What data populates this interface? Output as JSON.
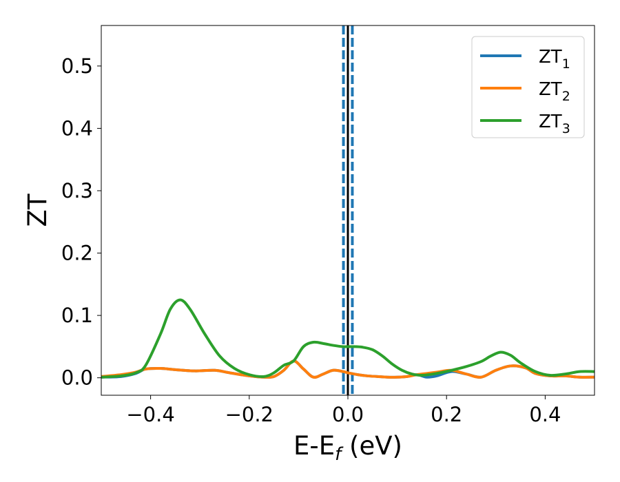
{
  "chart_data": {
    "type": "line",
    "title": "",
    "xlabel": {
      "main": "E-E",
      "sub": "f",
      "suffix": " (eV)"
    },
    "ylabel": "ZT",
    "xlim": [
      -0.5,
      0.5
    ],
    "ylim": [
      -0.028,
      0.565
    ],
    "xticks": [
      -0.4,
      -0.2,
      0.0,
      0.2,
      0.4
    ],
    "xtick_labels": [
      "−0.4",
      "−0.2",
      "0.0",
      "0.2",
      "0.4"
    ],
    "yticks": [
      0.0,
      0.1,
      0.2,
      0.3,
      0.4,
      0.5
    ],
    "ytick_labels": [
      "0.0",
      "0.1",
      "0.2",
      "0.3",
      "0.4",
      "0.5"
    ],
    "grid": false,
    "legend_position": "top-right",
    "vertical_lines": [
      {
        "x": 0.0,
        "style": "solid",
        "color": "#000000"
      },
      {
        "x": -0.009,
        "style": "dashed",
        "color": "#1f77b4"
      },
      {
        "x": 0.009,
        "style": "dashed",
        "color": "#1f77b4"
      }
    ],
    "series": [
      {
        "name": "ZT",
        "sub": "1",
        "color": "#1f77b4",
        "x": [
          -0.5,
          -0.46,
          -0.43,
          -0.41,
          -0.38,
          -0.35,
          -0.31,
          -0.27,
          -0.24,
          -0.2,
          -0.17,
          -0.15,
          -0.13,
          -0.11,
          -0.09,
          -0.07,
          -0.05,
          -0.03,
          -0.01,
          0.0,
          0.02,
          0.04,
          0.06,
          0.08,
          0.1,
          0.12,
          0.14,
          0.16,
          0.18,
          0.21,
          0.24,
          0.27,
          0.3,
          0.33,
          0.36,
          0.38,
          0.41,
          0.44,
          0.47,
          0.5
        ],
        "y": [
          0.001,
          0.002,
          0.007,
          0.014,
          0.015,
          0.013,
          0.011,
          0.012,
          0.008,
          0.003,
          0.001,
          0.002,
          0.012,
          0.027,
          0.014,
          0.001,
          0.006,
          0.012,
          0.01,
          0.008,
          0.005,
          0.003,
          0.002,
          0.001,
          0.001,
          0.002,
          0.005,
          0.001,
          0.003,
          0.01,
          0.006,
          0.001,
          0.012,
          0.019,
          0.016,
          0.007,
          0.003,
          0.003,
          0.001,
          0.001
        ]
      },
      {
        "name": "ZT",
        "sub": "2",
        "color": "#ff7f0e",
        "x": [
          -0.5,
          -0.46,
          -0.43,
          -0.41,
          -0.38,
          -0.35,
          -0.31,
          -0.27,
          -0.24,
          -0.2,
          -0.17,
          -0.15,
          -0.13,
          -0.11,
          -0.09,
          -0.07,
          -0.05,
          -0.03,
          -0.01,
          0.0,
          0.02,
          0.04,
          0.06,
          0.08,
          0.1,
          0.12,
          0.14,
          0.16,
          0.18,
          0.21,
          0.24,
          0.27,
          0.3,
          0.33,
          0.36,
          0.38,
          0.41,
          0.44,
          0.47,
          0.5
        ],
        "y": [
          0.002,
          0.005,
          0.009,
          0.014,
          0.015,
          0.013,
          0.011,
          0.012,
          0.008,
          0.003,
          0.001,
          0.002,
          0.012,
          0.027,
          0.014,
          0.001,
          0.006,
          0.012,
          0.01,
          0.008,
          0.005,
          0.003,
          0.002,
          0.001,
          0.001,
          0.002,
          0.005,
          0.007,
          0.009,
          0.012,
          0.006,
          0.001,
          0.012,
          0.019,
          0.016,
          0.007,
          0.003,
          0.003,
          0.001,
          0.001
        ]
      },
      {
        "name": "ZT",
        "sub": "3",
        "color": "#2ca02c",
        "x": [
          -0.5,
          -0.46,
          -0.43,
          -0.41,
          -0.38,
          -0.36,
          -0.34,
          -0.32,
          -0.29,
          -0.26,
          -0.23,
          -0.2,
          -0.17,
          -0.15,
          -0.13,
          -0.11,
          -0.09,
          -0.07,
          -0.05,
          -0.03,
          -0.01,
          0.01,
          0.03,
          0.05,
          0.07,
          0.09,
          0.11,
          0.13,
          0.15,
          0.18,
          0.21,
          0.24,
          0.27,
          0.29,
          0.31,
          0.33,
          0.35,
          0.38,
          0.41,
          0.44,
          0.47,
          0.5
        ],
        "y": [
          0.001,
          0.003,
          0.008,
          0.02,
          0.07,
          0.11,
          0.125,
          0.11,
          0.07,
          0.035,
          0.015,
          0.005,
          0.002,
          0.008,
          0.02,
          0.027,
          0.05,
          0.057,
          0.055,
          0.052,
          0.05,
          0.05,
          0.049,
          0.045,
          0.035,
          0.022,
          0.012,
          0.006,
          0.004,
          0.007,
          0.012,
          0.018,
          0.026,
          0.035,
          0.041,
          0.036,
          0.024,
          0.01,
          0.004,
          0.006,
          0.01,
          0.01
        ]
      }
    ]
  }
}
